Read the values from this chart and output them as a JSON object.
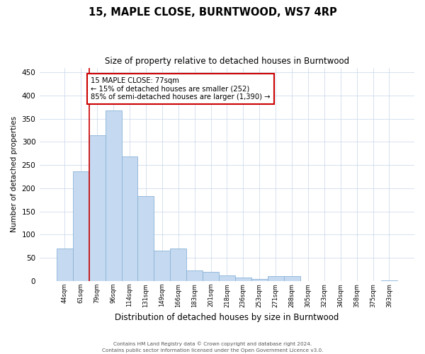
{
  "title": "15, MAPLE CLOSE, BURNTWOOD, WS7 4RP",
  "subtitle": "Size of property relative to detached houses in Burntwood",
  "xlabel": "Distribution of detached houses by size in Burntwood",
  "ylabel": "Number of detached properties",
  "categories": [
    "44sqm",
    "61sqm",
    "79sqm",
    "96sqm",
    "114sqm",
    "131sqm",
    "149sqm",
    "166sqm",
    "183sqm",
    "201sqm",
    "218sqm",
    "236sqm",
    "253sqm",
    "271sqm",
    "288sqm",
    "305sqm",
    "323sqm",
    "340sqm",
    "358sqm",
    "375sqm",
    "393sqm"
  ],
  "values": [
    70,
    237,
    315,
    368,
    268,
    183,
    65,
    70,
    23,
    20,
    12,
    8,
    4,
    11,
    11,
    0,
    0,
    0,
    0,
    0,
    2
  ],
  "bar_color": "#c5d9f0",
  "bar_edge_color": "#8ab4d8",
  "annotation_text": "15 MAPLE CLOSE: 77sqm\n← 15% of detached houses are smaller (252)\n85% of semi-detached houses are larger (1,390) →",
  "annotation_box_color": "white",
  "annotation_box_edge_color": "#cc0000",
  "vline_color": "#cc0000",
  "ylim": [
    0,
    460
  ],
  "yticks": [
    0,
    50,
    100,
    150,
    200,
    250,
    300,
    350,
    400,
    450
  ],
  "footer_line1": "Contains HM Land Registry data © Crown copyright and database right 2024.",
  "footer_line2": "Contains public sector information licensed under the Open Government Licence v3.0.",
  "background_color": "white",
  "grid_color": "#c8d4e8"
}
